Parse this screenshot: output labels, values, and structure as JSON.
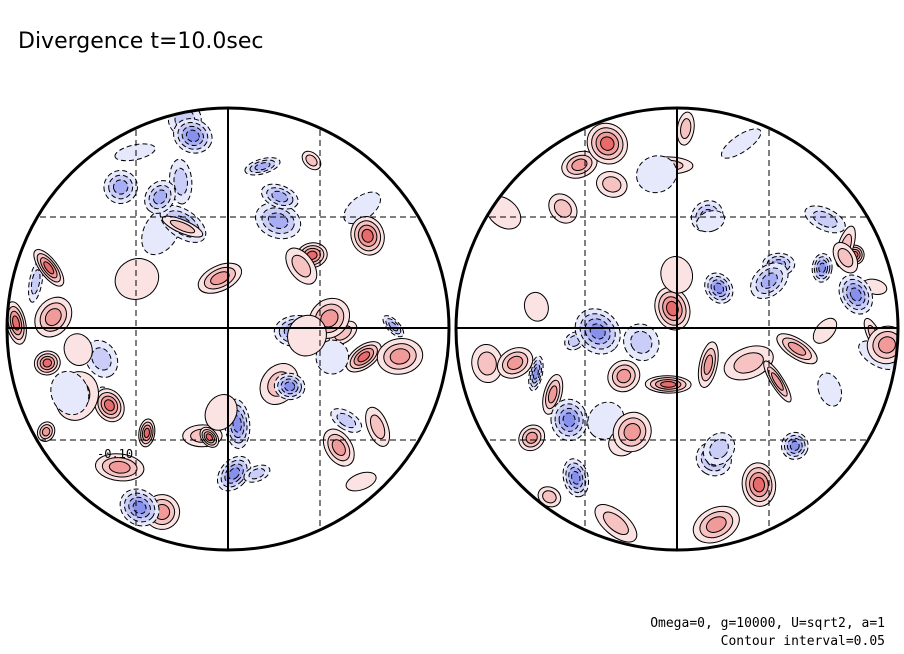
{
  "chart_data": {
    "type": "contour",
    "title": "Divergence t=10.0sec",
    "contour_labels": [
      "-0.10"
    ],
    "notes": [
      "Omega=0, g=10000, U=sqrt2, a=1",
      "Contour interval=0.05"
    ]
  }
}
